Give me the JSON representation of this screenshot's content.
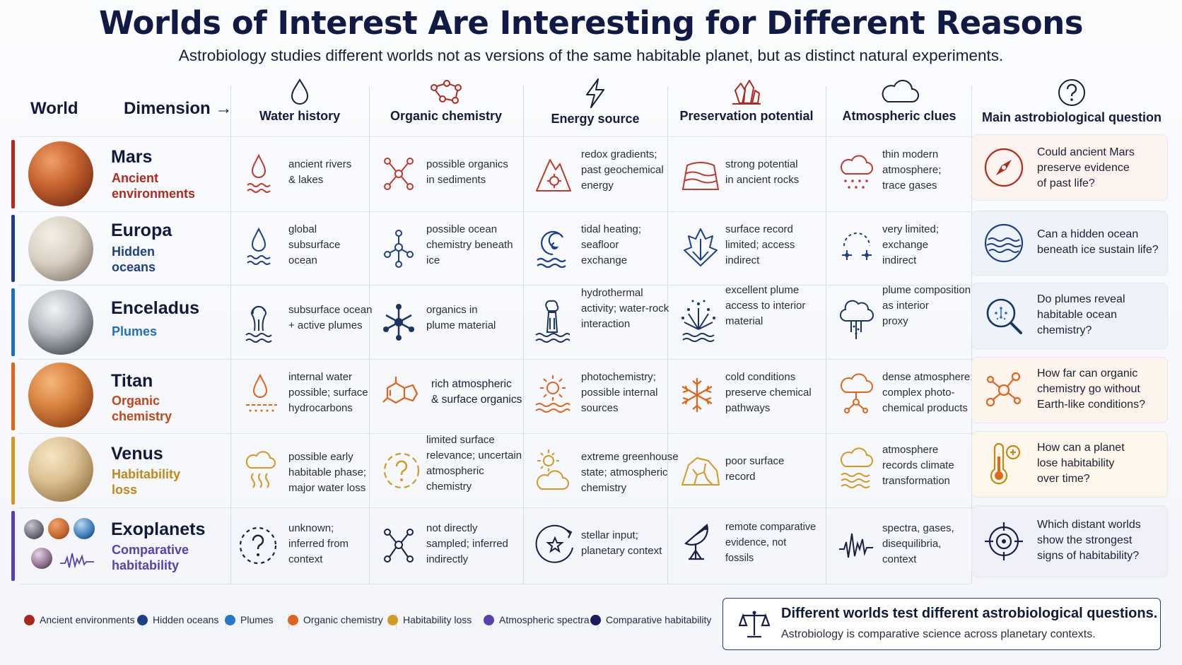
{
  "title": "Worlds of Interest Are Interesting for Different Reasons",
  "subtitle": "Astrobiology studies different worlds not as versions of the same habitable planet, but as distinct natural experiments.",
  "header": {
    "world": "World",
    "dimension": "Dimension →",
    "columns": [
      "Water history",
      "Organic chemistry",
      "Energy source",
      "Preservation potential",
      "Atmospheric clues",
      "Main astrobiological question"
    ]
  },
  "rows": [
    {
      "name": "Mars",
      "sub": "Ancient environments",
      "color": "#b02a1e",
      "cells": [
        "ancient rivers\n& lakes",
        "possible organics\nin sediments",
        "redox gradients;\npast geochemical\nenergy",
        "strong potential\nin ancient rocks",
        "thin modern\natmosphere;\ntrace gases"
      ],
      "question": "Could ancient Mars\npreserve evidence\nof past life?"
    },
    {
      "name": "Europa",
      "sub": "Hidden oceans",
      "color": "#1f3f8a",
      "cells": [
        "global\nsubsurface\nocean",
        "possible ocean\nchemistry beneath\nice",
        "tidal heating;\nseafloor\nexchange",
        "surface record\nlimited; access\nindirect",
        "very limited;\nexchange\nindirect"
      ],
      "question": "Can a hidden ocean\nbeneath ice sustain life?"
    },
    {
      "name": "Enceladus",
      "sub": "Plumes",
      "color": "#1e6fc0",
      "cells": [
        "subsurface ocean\n+ active plumes",
        "organics in\nplume material",
        "hydrothermal\nactivity; water-rock\ninteraction",
        "excellent plume\naccess to interior\nmaterial",
        "plume composition\nas interior\nproxy"
      ],
      "question": "Do plumes reveal\nhabitable ocean\nchemistry?"
    },
    {
      "name": "Titan",
      "sub": "Organic chemistry",
      "color": "#e0641c",
      "cells": [
        "internal water\npossible; surface\nhydrocarbons",
        "rich atmospheric\n& surface organics",
        "photochemistry;\npossible internal\nsources",
        "cold conditions\npreserve chemical\npathways",
        "dense atmosphere;\ncomplex photo-\nchemical products"
      ],
      "question": "How far can organic\nchemistry go without\nEarth-like conditions?"
    },
    {
      "name": "Venus",
      "sub": "Habitability loss",
      "color": "#d09a25",
      "cells": [
        "possible early\nhabitable phase;\nmajor water loss",
        "limited surface\nrelevance; uncertain\natmospheric\nchemistry",
        "extreme greenhouse\nstate; atmospheric\nchemistry",
        "poor surface\nrecord",
        "atmosphere\nrecords climate\ntransformation"
      ],
      "question": "How can a planet\nlose habitability\nover time?"
    },
    {
      "name": "Exoplanets",
      "sub": "Comparative habitability",
      "color": "#5a3fb0",
      "cells": [
        "unknown;\ninferred from\ncontext",
        "not directly\nsampled; inferred\nindirectly",
        "stellar input;\nplanetary context",
        "remote comparative\nevidence, not\nfossils",
        "spectra, gases,\ndisequilibria,\ncontext"
      ],
      "question": "Which distant worlds\nshow the strongest\nsigns of habitability?"
    }
  ],
  "legend": [
    {
      "label": "Ancient environments",
      "color": "#a8261c"
    },
    {
      "label": "Hidden oceans",
      "color": "#1c3f86"
    },
    {
      "label": "Plumes",
      "color": "#2277cc"
    },
    {
      "label": "Organic chemistry",
      "color": "#e0641c"
    },
    {
      "label": "Habitability loss",
      "color": "#d09a25"
    },
    {
      "label": "Atmospheric spectra",
      "color": "#5a3fb0"
    },
    {
      "label": "Comparative habitability",
      "color": "#1b1b5e"
    }
  ],
  "summary": {
    "headline": "Different worlds test different astrobiological questions.",
    "detail": "Astrobiology is comparative science across planetary contexts."
  }
}
